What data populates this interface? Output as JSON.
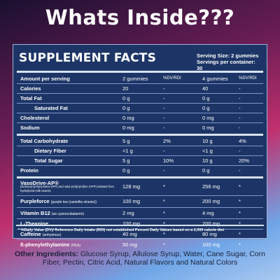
{
  "headline": "Whats Inside???",
  "facts_title": "SUPPLEMENT FACTS",
  "serving_size": "Serving Size:  2 gummies",
  "servings_per_container": "Servings per container: 30",
  "header": {
    "col0": "Amount per serving",
    "col1": "2 gummies",
    "col2": "%DV/RDI",
    "col3": "4 gummies",
    "col4": "%DV/RDI"
  },
  "group1": [
    {
      "name": "Calories",
      "v1": "20",
      "p1": "-",
      "v2": "40",
      "p2": "-"
    },
    {
      "name": "Total Fat",
      "v1": "0 g",
      "p1": "-",
      "v2": "0 g",
      "p2": "-"
    },
    {
      "name": "Saturated Fat",
      "v1": "0 g",
      "p1": "-",
      "v2": "0 g",
      "p2": "-"
    },
    {
      "name": "Cholesterol",
      "v1": "0 mg",
      "p1": "-",
      "v2": "0 mg",
      "p2": "-"
    },
    {
      "name": "Sodium",
      "v1": "0 mg",
      "p1": "-",
      "v2": "0 mg",
      "p2": "-"
    }
  ],
  "group2": [
    {
      "name": "Total Carbohydrate",
      "v1": "5 g",
      "p1": "2%",
      "v2": "10 g",
      "p2": "4%"
    },
    {
      "name": "Dietary Fiber",
      "v1": "<1 g",
      "p1": "-",
      "v2": "<1 g",
      "p2": "-"
    },
    {
      "name": "Total Sugar",
      "v1": "5 g",
      "p1": "10%",
      "v2": "10 g",
      "p2": "20%"
    },
    {
      "name": "Protein",
      "v1": "0 g",
      "p1": "-",
      "v2": "0 g",
      "p2": "-"
    }
  ],
  "group3": [
    {
      "name": "VasoDrive-AP®",
      "note": "(isoleucyl-prolyl-proline (IPP) and valyl-prolyl-proline (VPP) isolated from hydrolyzed milk casein)",
      "v1": "128 mg",
      "p1": "*",
      "v2": "256 mg",
      "p2": "*"
    },
    {
      "name": "Purpleforce",
      "note": "(purple tea (camellia sinesis))",
      "v1": "100 mg",
      "p1": "*",
      "v2": "200 mg",
      "p2": "*"
    },
    {
      "name": "Vitamin B12",
      "note": "(as cyanocobalamin)",
      "v1": "2 mg",
      "p1": "*",
      "v2": "4 mg",
      "p2": "*"
    },
    {
      "name": "L-Theanine",
      "note": "",
      "v1": "100 mg",
      "p1": "*",
      "v2": "200 mg",
      "p2": "*"
    },
    {
      "name": "Caffeine",
      "note": "(anhydrous)",
      "v1": "40 mg",
      "p1": "*",
      "v2": "80 mg",
      "p2": "*"
    },
    {
      "name": "ß-phenylethylamine",
      "note": "(PEA)",
      "v1": "50 mg",
      "p1": "*",
      "v2": "100 mg",
      "p2": "*"
    }
  ],
  "footnote": "*  %Daily Value (DV)/ Reference Daily Intake (RDI) not established Percent Daily Values based on a 2,000 calorie diet",
  "other_label": "Other Ingredients:",
  "other_text": "Glucose Syrup, Allulose Syrup, Water, Cane Sugar, Corn Fiber, Pectin, Citric Acid, Natural Flavors and Natural Colors"
}
